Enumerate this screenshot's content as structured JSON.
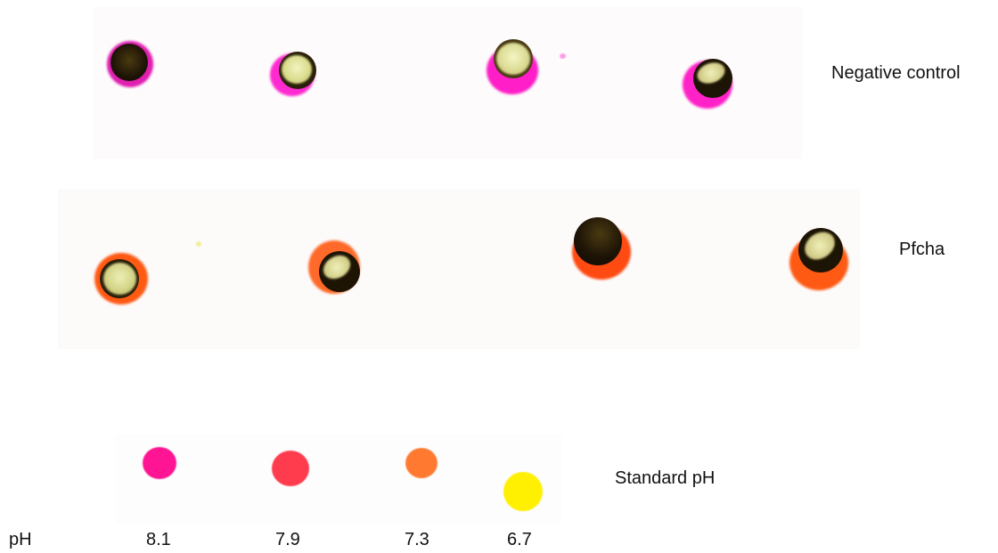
{
  "rows": [
    {
      "label": "Negative control",
      "color_a": "#ff1ec8",
      "color_b": "#ff3fd2"
    },
    {
      "label": "Pfcha",
      "color_a": "#ff5a14",
      "color_b": "#ff6a2a"
    },
    {
      "label": "Standard pH"
    }
  ],
  "ph_label": "pH",
  "standards": [
    {
      "ph": "8.1",
      "color": "#ff1493"
    },
    {
      "ph": "7.9",
      "color": "#ff3b4e"
    },
    {
      "ph": "7.3",
      "color": "#ff7a30"
    },
    {
      "ph": "6.7",
      "color": "#ffef00"
    }
  ],
  "colors": {
    "pellet_dark": "#1e1406",
    "pellet_light": "#e6e8a2",
    "background": "#ffffff"
  }
}
